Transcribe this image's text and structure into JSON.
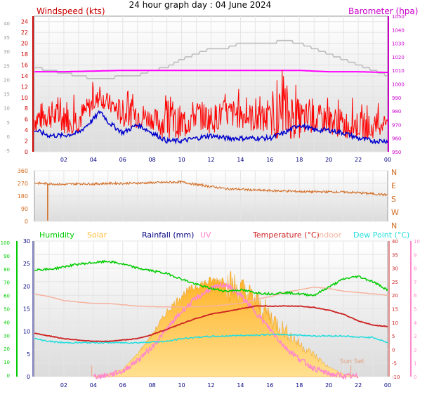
{
  "title": "24 hour graph day : 04 June 2024",
  "x_ticks": [
    "02",
    "04",
    "06",
    "08",
    "10",
    "12",
    "14",
    "16",
    "18",
    "20",
    "22",
    "00"
  ],
  "sun_label": "Sun Set",
  "colors": {
    "wind": "#ff0000",
    "gust": "#ff0000",
    "avg": "#0000cc",
    "baro": "#ff00ff",
    "grey": "#bdbdbd",
    "dir": "#d2691e",
    "humidity": "#00cc00",
    "solar": "#ffbf3c",
    "rain": "#000080",
    "uv": "#ff88cc",
    "temp": "#cc2222",
    "indoor": "#f5b3a0",
    "dew": "#22dddd",
    "far_axis": "#999999"
  },
  "chart_data": [
    {
      "type": "line",
      "name": "wind-barometer",
      "title": "",
      "left_label": "Windspeed (kts)",
      "right_label": "Barometer (hpa)",
      "left_ticks": [
        "0",
        "2",
        "4",
        "6",
        "8",
        "10",
        "12",
        "14",
        "16",
        "18",
        "20",
        "22",
        "24"
      ],
      "far_left_ticks": [
        "-5",
        "0",
        "5",
        "10",
        "15",
        "20",
        "25",
        "30",
        "35",
        "40"
      ],
      "right_ticks": [
        "950",
        "960",
        "970",
        "980",
        "990",
        "1000",
        "1010",
        "1020",
        "1030",
        "1040",
        "1050"
      ],
      "ylim": [
        0,
        25
      ],
      "baro_ylim": [
        950,
        1050
      ],
      "x_range_hours": [
        0,
        24
      ],
      "series": [
        {
          "key": "wind",
          "x": [
            0,
            1,
            2,
            3,
            4,
            4.5,
            5,
            6,
            7,
            8,
            9,
            10,
            11,
            12,
            13,
            14,
            15,
            16,
            17,
            18,
            19,
            20,
            21,
            22,
            23,
            24
          ],
          "values": [
            6,
            7,
            6,
            6,
            9,
            10,
            9,
            7,
            7,
            6,
            5,
            5,
            7,
            6,
            7,
            7,
            6,
            6,
            7,
            6,
            6,
            6,
            5,
            5,
            4,
            6
          ]
        },
        {
          "key": "gust",
          "x": [
            0,
            1,
            2,
            3,
            4,
            4.5,
            5,
            6,
            7,
            8,
            9,
            10,
            11,
            12,
            13,
            14,
            15,
            16,
            17,
            18,
            19,
            20,
            21,
            22,
            23,
            24
          ],
          "values": [
            9,
            10,
            9,
            9,
            11,
            12,
            11,
            10,
            10,
            8,
            9,
            9,
            10,
            9,
            10,
            10,
            9,
            9,
            14,
            10,
            9,
            9,
            8,
            8,
            7,
            7
          ]
        },
        {
          "key": "avg",
          "x": [
            0,
            1,
            2,
            3,
            4,
            4.5,
            5,
            6,
            7,
            8,
            9,
            10,
            11,
            12,
            13,
            14,
            15,
            16,
            17,
            18,
            19,
            20,
            21,
            22,
            23,
            24
          ],
          "values": [
            4,
            3,
            3,
            3.5,
            6,
            7.5,
            5.5,
            3.5,
            5,
            3.5,
            2,
            2,
            2.5,
            3,
            2.5,
            2.5,
            2.5,
            2.5,
            3.5,
            5,
            4,
            4,
            3.5,
            2.5,
            2,
            2
          ]
        },
        {
          "key": "baro",
          "x": [
            0,
            2,
            4,
            6,
            8,
            10,
            12,
            14,
            16,
            18,
            20,
            22,
            24
          ],
          "values": [
            1009,
            1009,
            1009.5,
            1010,
            1010,
            1010,
            1010,
            1010,
            1010,
            1010,
            1009,
            1009,
            1008.5
          ]
        },
        {
          "key": "grey",
          "x": [
            0,
            1,
            2,
            3,
            4,
            5,
            6,
            7,
            8,
            9,
            10,
            11,
            12,
            13,
            14,
            15,
            16,
            17,
            18,
            19,
            20,
            21,
            22,
            23,
            24
          ],
          "values": [
            15.5,
            15,
            14.5,
            14,
            13.5,
            13.5,
            14,
            14,
            15,
            15.5,
            17,
            18,
            19,
            19,
            20,
            20,
            20,
            20.5,
            20,
            19,
            18,
            17,
            16,
            15,
            14
          ]
        }
      ]
    },
    {
      "type": "line",
      "name": "wind-direction",
      "left_ticks": [
        "0",
        "90",
        "180",
        "270",
        "360"
      ],
      "right_labels": [
        "N",
        "E",
        "S",
        "W",
        "N"
      ],
      "ylim": [
        0,
        360
      ],
      "series": [
        {
          "key": "dir",
          "x": [
            0,
            1,
            2,
            3,
            4,
            5,
            6,
            7,
            8,
            9,
            10,
            11,
            12,
            13,
            14,
            15,
            16,
            17,
            18,
            19,
            20,
            21,
            22,
            23,
            24
          ],
          "values": [
            272,
            268,
            262,
            268,
            266,
            270,
            270,
            272,
            275,
            278,
            280,
            262,
            248,
            232,
            228,
            222,
            218,
            216,
            212,
            210,
            210,
            208,
            204,
            196,
            188
          ],
          "spike": {
            "x": 0.9,
            "values": [
              270,
              5
            ]
          }
        }
      ]
    },
    {
      "type": "line",
      "name": "temperature-humidity-solar",
      "legend": [
        "Humidity",
        "Solar",
        "Rainfall (mm)",
        "UV",
        "Temperature (°C)",
        "Indoor",
        "Dew Point (°C)"
      ],
      "hum_ticks": [
        "0",
        "10",
        "20",
        "30",
        "40",
        "50",
        "60",
        "70",
        "80",
        "90",
        "100"
      ],
      "rain_ticks": [
        "0",
        "5",
        "10",
        "15",
        "20",
        "25",
        "30"
      ],
      "temp_ticks": [
        "-10",
        "-5",
        "0",
        "5",
        "10",
        "15",
        "20",
        "25",
        "30",
        "35",
        "40"
      ],
      "uv_ticks": [
        "0",
        "1",
        "2",
        "3",
        "4",
        "5",
        "6",
        "7",
        "8",
        "9",
        "10"
      ],
      "temp_ylim": [
        -10,
        40
      ],
      "series": [
        {
          "key": "humidity",
          "x": [
            0,
            1,
            2,
            3,
            4,
            5,
            6,
            7,
            8,
            9,
            10,
            11,
            12,
            13,
            14,
            15,
            16,
            17,
            18,
            19,
            20,
            21,
            22,
            23,
            24
          ],
          "values": [
            79,
            79,
            81,
            83,
            84,
            85,
            83,
            80,
            78,
            76,
            72,
            68,
            65,
            63,
            64,
            62,
            61,
            62,
            61,
            60,
            66,
            72,
            74,
            70,
            64
          ]
        },
        {
          "key": "temp",
          "x": [
            0,
            1,
            2,
            3,
            4,
            5,
            6,
            7,
            8,
            9,
            10,
            11,
            12,
            13,
            14,
            15,
            16,
            17,
            18,
            19,
            20,
            21,
            22,
            23,
            24
          ],
          "values": [
            6,
            5,
            4,
            3.5,
            3,
            3,
            3.5,
            4,
            5.5,
            7.5,
            9.5,
            11.5,
            13,
            14,
            15,
            16,
            16,
            16,
            16,
            15.5,
            14.5,
            13,
            10.5,
            9,
            8.5
          ]
        },
        {
          "key": "indoor",
          "x": [
            0,
            1,
            2,
            3,
            4,
            5,
            6,
            7,
            8,
            9,
            10,
            11,
            12,
            13,
            14,
            15,
            16,
            17,
            18,
            19,
            20,
            21,
            22,
            23,
            24
          ],
          "values": [
            20.5,
            19.5,
            18,
            17.5,
            17,
            17,
            16.5,
            16,
            15.8,
            15.7,
            15.7,
            15.8,
            16,
            16.5,
            17,
            18.5,
            19.5,
            21,
            22,
            23,
            22.5,
            21.5,
            21,
            20.5,
            20
          ]
        },
        {
          "key": "dew",
          "x": [
            0,
            1,
            2,
            3,
            4,
            5,
            6,
            7,
            8,
            9,
            10,
            11,
            12,
            13,
            14,
            15,
            16,
            17,
            18,
            19,
            20,
            21,
            22,
            23,
            24
          ],
          "values": [
            4,
            3,
            2.5,
            2.5,
            2.5,
            2.5,
            2.5,
            2.5,
            2.8,
            3,
            4,
            4.5,
            4.8,
            5,
            5.2,
            5.3,
            5.5,
            5.5,
            5.3,
            5,
            5,
            5,
            4.5,
            4.5,
            2.5
          ]
        },
        {
          "key": "uv",
          "x": [
            4,
            5,
            6,
            7,
            8,
            9,
            10,
            11,
            12,
            13,
            14,
            15,
            16,
            17,
            18,
            19,
            20,
            21,
            22
          ],
          "values": [
            0,
            0.1,
            0.4,
            1.2,
            2.2,
            3.5,
            4.8,
            5.8,
            6.5,
            6.8,
            6.0,
            4.8,
            3.5,
            2.2,
            1.3,
            0.6,
            0.2,
            0.05,
            0
          ]
        },
        {
          "key": "solar",
          "x": [
            4,
            5,
            6,
            7,
            8,
            9,
            10,
            11,
            12,
            13,
            14,
            15,
            16,
            17,
            18,
            19,
            20,
            21,
            22
          ],
          "values": [
            0,
            3,
            9,
            28,
            52,
            80,
            100,
            112,
            118,
            120,
            112,
            98,
            78,
            60,
            42,
            28,
            12,
            3,
            0
          ],
          "max_value": 120
        }
      ]
    }
  ]
}
